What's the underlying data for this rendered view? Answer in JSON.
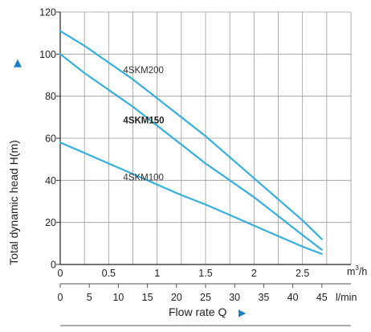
{
  "chart_data": {
    "type": "line",
    "ylabel": "Total dynamic head H(m)",
    "ylabel_arrow": "▲",
    "xlabel": "Flow rate  Q",
    "xlabel_arrow": "▶",
    "x_unit_top": "m³/h",
    "x_unit_top_base": "m",
    "x_unit_top_sup": "3",
    "x_unit_top_tail": "/h",
    "x_unit_bottom": "l/min",
    "xlim": [
      0,
      3
    ],
    "ylim": [
      0,
      120
    ],
    "grid": true,
    "line_color": "#35b0dc",
    "y_ticks": [
      {
        "value": 0,
        "label": "0"
      },
      {
        "value": 20,
        "label": "20"
      },
      {
        "value": 40,
        "label": "40"
      },
      {
        "value": 60,
        "label": "60"
      },
      {
        "value": 80,
        "label": "80"
      },
      {
        "value": 100,
        "label": "100"
      },
      {
        "value": 120,
        "label": "120"
      }
    ],
    "x_ticks_m3h": [
      {
        "value": 0,
        "label": "0"
      },
      {
        "value": 0.5,
        "label": "0.5"
      },
      {
        "value": 1,
        "label": "1"
      },
      {
        "value": 1.5,
        "label": "1.5"
      },
      {
        "value": 2,
        "label": "2"
      },
      {
        "value": 2.5,
        "label": "2.5"
      }
    ],
    "x_ticks_lmin": [
      {
        "value": 0,
        "label": "0"
      },
      {
        "value": 5,
        "label": "5"
      },
      {
        "value": 10,
        "label": "10"
      },
      {
        "value": 15,
        "label": "15"
      },
      {
        "value": 20,
        "label": "20"
      },
      {
        "value": 25,
        "label": "25"
      },
      {
        "value": 30,
        "label": "30"
      },
      {
        "value": 35,
        "label": "35"
      },
      {
        "value": 40,
        "label": "40"
      },
      {
        "value": 45,
        "label": "45"
      }
    ],
    "series": [
      {
        "name": "4SKM200",
        "bold": false,
        "label_at": [
          0.65,
          91
        ],
        "x": [
          0,
          0.25,
          0.5,
          0.75,
          1.0,
          1.25,
          1.5,
          1.75,
          2.0,
          2.25,
          2.5,
          2.7
        ],
        "y": [
          111,
          104,
          96,
          88,
          79,
          70,
          61,
          51,
          41,
          31,
          21,
          12
        ]
      },
      {
        "name": "4SKM150",
        "bold": true,
        "label_at": [
          0.65,
          67
        ],
        "x": [
          0,
          0.25,
          0.5,
          0.75,
          1.0,
          1.25,
          1.5,
          1.75,
          2.0,
          2.25,
          2.5,
          2.7
        ],
        "y": [
          100,
          91,
          83,
          75,
          66,
          57,
          48,
          40,
          32,
          23,
          14,
          7
        ]
      },
      {
        "name": "4SKM100",
        "bold": false,
        "label_at": [
          0.65,
          40
        ],
        "x": [
          0,
          0.25,
          0.5,
          0.75,
          1.0,
          1.25,
          1.5,
          1.75,
          2.0,
          2.25,
          2.5,
          2.7
        ],
        "y": [
          58,
          53,
          48,
          43,
          38,
          33,
          28.5,
          23.5,
          18.5,
          13.5,
          8.5,
          5
        ]
      }
    ]
  }
}
